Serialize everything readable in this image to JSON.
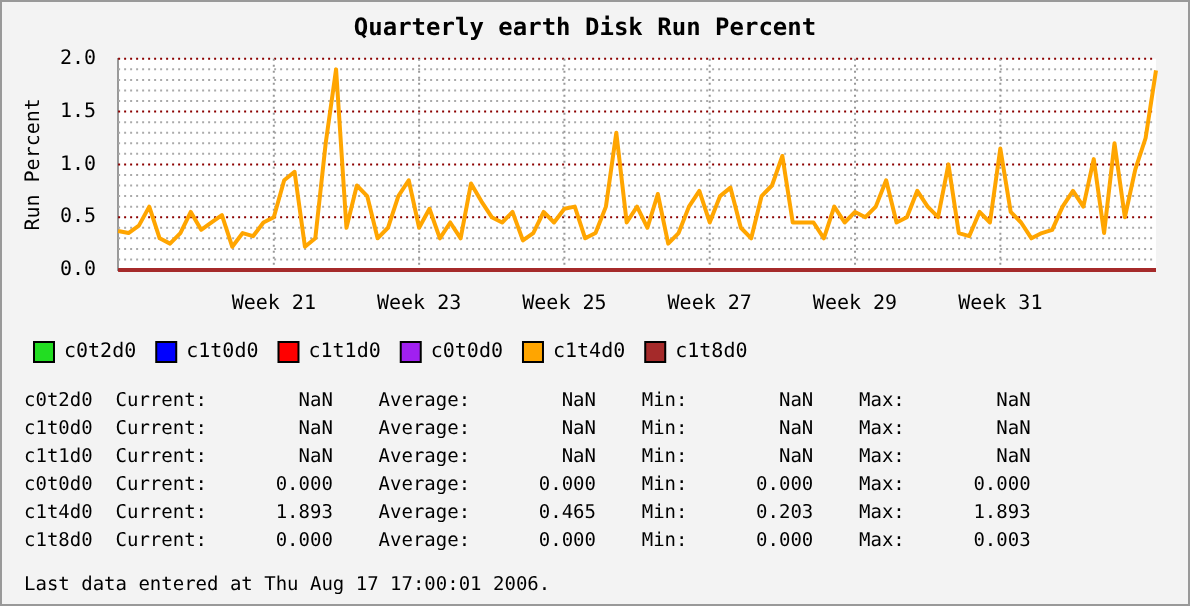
{
  "chart_data": {
    "type": "line",
    "title": "Quarterly earth Disk Run Percent",
    "ylabel": "Run Percent",
    "categories": [
      null,
      null,
      null,
      null,
      null,
      null,
      null,
      null,
      null,
      null,
      null,
      null,
      null,
      null,
      null,
      "Week 21",
      null,
      null,
      null,
      null,
      null,
      null,
      null,
      null,
      null,
      null,
      null,
      null,
      null,
      "Week 23",
      null,
      null,
      null,
      null,
      null,
      null,
      null,
      null,
      null,
      null,
      null,
      null,
      null,
      "Week 25",
      null,
      null,
      null,
      null,
      null,
      null,
      null,
      null,
      null,
      null,
      null,
      null,
      null,
      "Week 27",
      null,
      null,
      null,
      null,
      null,
      null,
      null,
      null,
      null,
      null,
      null,
      null,
      null,
      "Week 29",
      null,
      null,
      null,
      null,
      null,
      null,
      null,
      null,
      null,
      null,
      null,
      null,
      null,
      "Week 31",
      null,
      null,
      null,
      null,
      null,
      null,
      null,
      null,
      null,
      null,
      null,
      null,
      null,
      null,
      null
    ],
    "ylim": [
      0,
      2
    ],
    "yticks": [
      {
        "value": 0,
        "label": "0.0"
      },
      {
        "value": 0.1,
        "label": null
      },
      {
        "value": 0.2,
        "label": null
      },
      {
        "value": 0.3,
        "label": null
      },
      {
        "value": 0.4,
        "label": null
      },
      {
        "value": 0.5,
        "label": "0.5"
      },
      {
        "value": 0.6,
        "label": null
      },
      {
        "value": 0.7,
        "label": null
      },
      {
        "value": 0.8,
        "label": null
      },
      {
        "value": 0.9,
        "label": null
      },
      {
        "value": 1,
        "label": "1.0"
      },
      {
        "value": 1.1,
        "label": null
      },
      {
        "value": 1.2,
        "label": null
      },
      {
        "value": 1.3,
        "label": null
      },
      {
        "value": 1.4,
        "label": null
      },
      {
        "value": 1.5,
        "label": "1.5"
      },
      {
        "value": 1.6,
        "label": null
      },
      {
        "value": 1.7,
        "label": null
      },
      {
        "value": 1.8,
        "label": null
      },
      {
        "value": 1.9,
        "label": null
      },
      {
        "value": 2,
        "label": "2.0"
      }
    ],
    "grid": true,
    "legend": "bottom",
    "marker": "none",
    "line_style": "solid",
    "series": [
      {
        "name": "c0t2d0",
        "color": "#22dd22",
        "values": [
          null,
          null,
          null,
          null,
          null,
          null,
          null,
          null,
          null,
          null,
          null,
          null,
          null,
          null,
          null,
          null,
          null,
          null,
          null,
          null,
          null,
          null,
          null,
          null,
          null,
          null,
          null,
          null,
          null,
          null,
          null,
          null,
          null,
          null,
          null,
          null,
          null,
          null,
          null,
          null,
          null,
          null,
          null,
          null,
          null,
          null,
          null,
          null,
          null,
          null,
          null,
          null,
          null,
          null,
          null,
          null,
          null,
          null,
          null,
          null,
          null,
          null,
          null,
          null,
          null,
          null,
          null,
          null,
          null,
          null,
          null,
          null,
          null,
          null,
          null,
          null,
          null,
          null,
          null,
          null,
          null,
          null,
          null,
          null,
          null,
          null,
          null,
          null,
          null,
          null,
          null,
          null,
          null,
          null,
          null,
          null,
          null,
          null,
          null,
          null,
          null
        ]
      },
      {
        "name": "c1t0d0",
        "color": "#0000ff",
        "values": [
          null,
          null,
          null,
          null,
          null,
          null,
          null,
          null,
          null,
          null,
          null,
          null,
          null,
          null,
          null,
          null,
          null,
          null,
          null,
          null,
          null,
          null,
          null,
          null,
          null,
          null,
          null,
          null,
          null,
          null,
          null,
          null,
          null,
          null,
          null,
          null,
          null,
          null,
          null,
          null,
          null,
          null,
          null,
          null,
          null,
          null,
          null,
          null,
          null,
          null,
          null,
          null,
          null,
          null,
          null,
          null,
          null,
          null,
          null,
          null,
          null,
          null,
          null,
          null,
          null,
          null,
          null,
          null,
          null,
          null,
          null,
          null,
          null,
          null,
          null,
          null,
          null,
          null,
          null,
          null,
          null,
          null,
          null,
          null,
          null,
          null,
          null,
          null,
          null,
          null,
          null,
          null,
          null,
          null,
          null,
          null,
          null,
          null,
          null,
          null,
          null
        ]
      },
      {
        "name": "c1t1d0",
        "color": "#ff0000",
        "values": [
          null,
          null,
          null,
          null,
          null,
          null,
          null,
          null,
          null,
          null,
          null,
          null,
          null,
          null,
          null,
          null,
          null,
          null,
          null,
          null,
          null,
          null,
          null,
          null,
          null,
          null,
          null,
          null,
          null,
          null,
          null,
          null,
          null,
          null,
          null,
          null,
          null,
          null,
          null,
          null,
          null,
          null,
          null,
          null,
          null,
          null,
          null,
          null,
          null,
          null,
          null,
          null,
          null,
          null,
          null,
          null,
          null,
          null,
          null,
          null,
          null,
          null,
          null,
          null,
          null,
          null,
          null,
          null,
          null,
          null,
          null,
          null,
          null,
          null,
          null,
          null,
          null,
          null,
          null,
          null,
          null,
          null,
          null,
          null,
          null,
          null,
          null,
          null,
          null,
          null,
          null,
          null,
          null,
          null,
          null,
          null,
          null,
          null,
          null,
          null,
          null
        ]
      },
      {
        "name": "c0t0d0",
        "color": "#a020f0",
        "values": [
          null,
          null,
          null,
          null,
          null,
          null,
          null,
          null,
          null,
          null,
          null,
          null,
          null,
          null,
          null,
          null,
          null,
          null,
          null,
          null,
          null,
          null,
          null,
          null,
          null,
          null,
          null,
          null,
          null,
          null,
          null,
          null,
          null,
          null,
          null,
          null,
          null,
          null,
          null,
          null,
          null,
          null,
          null,
          null,
          null,
          null,
          null,
          null,
          null,
          null,
          null,
          null,
          null,
          null,
          null,
          null,
          null,
          null,
          null,
          null,
          null,
          null,
          null,
          null,
          null,
          null,
          null,
          null,
          null,
          null,
          null,
          null,
          null,
          null,
          null,
          null,
          null,
          null,
          null,
          null,
          null,
          null,
          null,
          null,
          null,
          null,
          null,
          null,
          null,
          null,
          null,
          null,
          null,
          null,
          null,
          null,
          null,
          null,
          null,
          null,
          null
        ]
      },
      {
        "name": "c1t4d0",
        "color": "#ffa500",
        "values": [
          0.37,
          0.35,
          0.42,
          0.6,
          0.3,
          0.25,
          0.35,
          0.55,
          0.38,
          0.45,
          0.52,
          0.22,
          0.35,
          0.32,
          0.45,
          0.5,
          0.85,
          0.93,
          0.22,
          0.3,
          1.2,
          1.9,
          0.4,
          0.8,
          0.7,
          0.3,
          0.4,
          0.7,
          0.85,
          0.4,
          0.58,
          0.3,
          0.45,
          0.3,
          0.82,
          0.65,
          0.5,
          0.45,
          0.55,
          0.28,
          0.35,
          0.55,
          0.45,
          0.58,
          0.6,
          0.3,
          0.35,
          0.6,
          1.3,
          0.45,
          0.6,
          0.4,
          0.72,
          0.25,
          0.35,
          0.6,
          0.75,
          0.45,
          0.7,
          0.78,
          0.4,
          0.3,
          0.7,
          0.8,
          1.08,
          0.45,
          0.45,
          0.45,
          0.3,
          0.6,
          0.45,
          0.55,
          0.5,
          0.6,
          0.85,
          0.45,
          0.5,
          0.75,
          0.6,
          0.5,
          1.0,
          0.35,
          0.32,
          0.55,
          0.45,
          1.15,
          0.55,
          0.45,
          0.3,
          0.35,
          0.38,
          0.6,
          0.75,
          0.6,
          1.05,
          0.35,
          1.2,
          0.5,
          0.95,
          1.25,
          1.89
        ]
      },
      {
        "name": "c1t8d0",
        "color": "#a52a2a",
        "values": [
          0,
          0,
          0,
          0,
          0,
          0,
          0,
          0,
          0,
          0,
          0,
          0,
          0,
          0,
          0,
          0,
          0,
          0,
          0,
          0,
          0,
          0,
          0,
          0,
          0,
          0,
          0,
          0,
          0,
          0,
          0,
          0,
          0,
          0,
          0,
          0,
          0,
          0,
          0,
          0,
          0,
          0,
          0,
          0,
          0,
          0,
          0,
          0,
          0,
          0,
          0,
          0,
          0,
          0,
          0,
          0,
          0,
          0,
          0,
          0,
          0,
          0,
          0,
          0,
          0,
          0,
          0,
          0,
          0,
          0,
          0,
          0,
          0,
          0,
          0,
          0,
          0,
          0,
          0,
          0,
          0,
          0,
          0,
          0,
          0,
          0,
          0,
          0,
          0,
          0,
          0,
          0,
          0,
          0,
          0,
          0,
          0,
          0,
          0,
          0,
          0
        ]
      }
    ],
    "annotations": [
      "c0t2d0  Current:        NaN    Average:        NaN    Min:        NaN    Max:        NaN",
      "c1t0d0  Current:        NaN    Average:        NaN    Min:        NaN    Max:        NaN",
      "c1t1d0  Current:        NaN    Average:        NaN    Min:        NaN    Max:        NaN",
      "c0t0d0  Current:      0.000    Average:      0.000    Min:      0.000    Max:      0.000",
      "c1t4d0  Current:      1.893    Average:      0.465    Min:      0.203    Max:      1.893",
      "c1t8d0  Current:      0.000    Average:      0.000    Min:      0.000    Max:      0.003",
      "Last data entered at Thu Aug 17 17:00:01 2006."
    ]
  }
}
